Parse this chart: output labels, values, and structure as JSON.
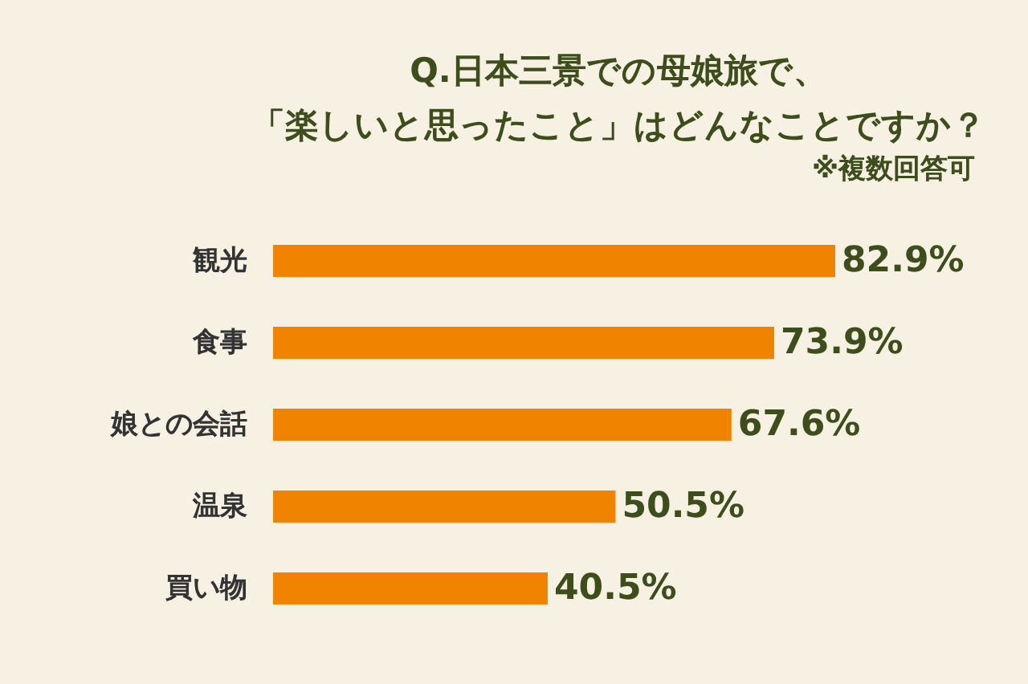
{
  "chart_data": {
    "type": "bar",
    "orientation": "horizontal",
    "title": "Q.日本三景での母娘旅で、「楽しいと思ったこと」はどんなことですか？",
    "subtitle": "※複数回答可",
    "categories": [
      "観光",
      "食事",
      "娘との会話",
      "温泉",
      "買い物"
    ],
    "values": [
      82.9,
      73.9,
      67.6,
      50.5,
      40.5
    ],
    "value_labels": [
      "82.9%",
      "73.9%",
      "67.6%",
      "50.5%",
      "40.5%"
    ],
    "color": "#f08300"
  }
}
